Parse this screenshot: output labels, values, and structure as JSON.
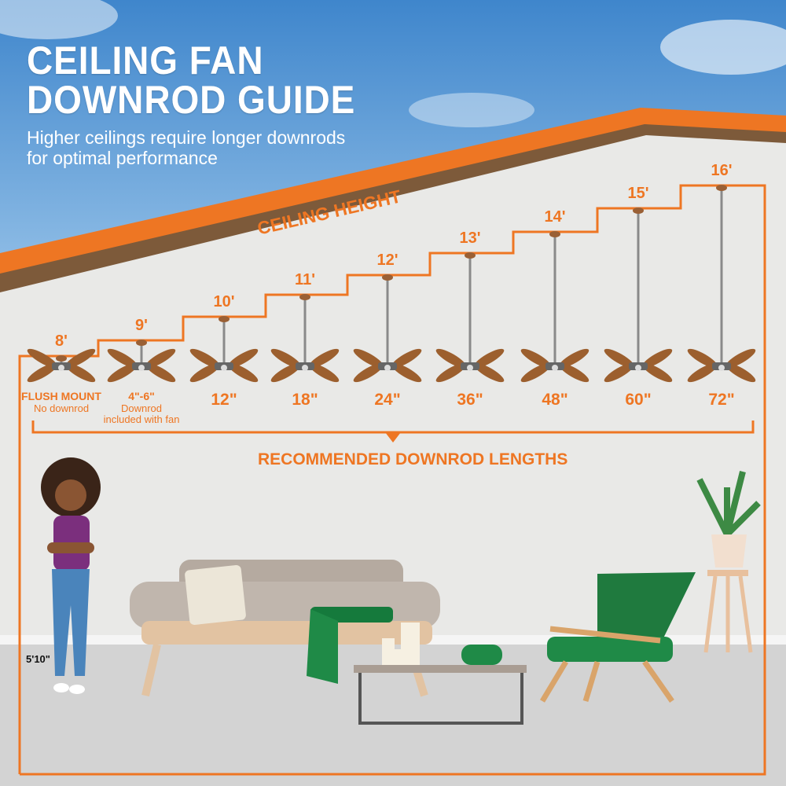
{
  "title_line1": "CEILING FAN",
  "title_line2": "DOWNROD GUIDE",
  "subtitle_line1": "Higher ceilings require longer downrods",
  "subtitle_line2": "for optimal performance",
  "ceiling_height_label": "CEILING HEIGHT",
  "recommended_label": "RECOMMENDED DOWNROD LENGTHS",
  "person_height": "5'10\"",
  "colors": {
    "accent": "#ee7623",
    "wall": "#e9e9e7",
    "floor": "#d3d3d3",
    "sky": "#4a8fd0"
  },
  "fans": [
    {
      "height": "8'",
      "downrod": "FLUSH MOUNT",
      "note": "No downrod"
    },
    {
      "height": "9'",
      "downrod": "4\"-6\"",
      "note": "Downrod",
      "note2": "included with fan"
    },
    {
      "height": "10'",
      "downrod": "12\""
    },
    {
      "height": "11'",
      "downrod": "18\""
    },
    {
      "height": "12'",
      "downrod": "24\""
    },
    {
      "height": "13'",
      "downrod": "36\""
    },
    {
      "height": "14'",
      "downrod": "48\""
    },
    {
      "height": "15'",
      "downrod": "60\""
    },
    {
      "height": "16'",
      "downrod": "72\""
    }
  ]
}
